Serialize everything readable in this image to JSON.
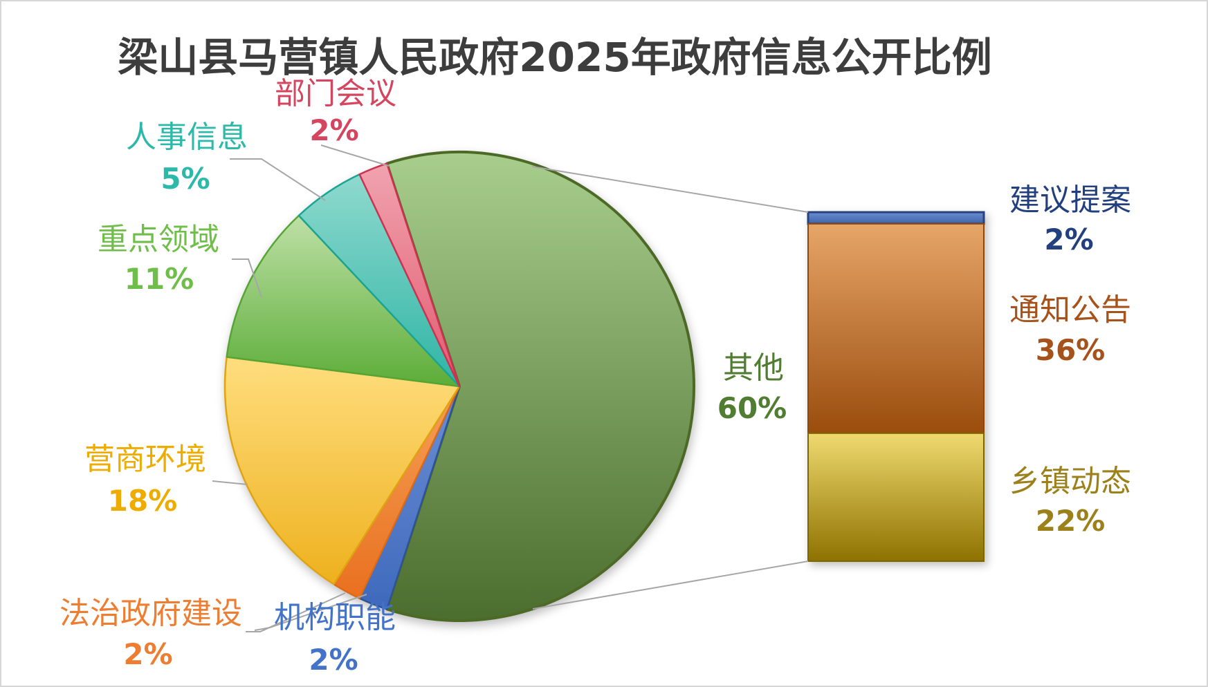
{
  "chart_data": {
    "type": "pie",
    "variant": "bar-of-pie",
    "title": "梁山县马营镇人民政府2025年政府信息公开比例",
    "title_color": "#3D3D3D",
    "unit": "%",
    "legend": "none",
    "grid": false,
    "start_angle_deg": -18,
    "pie_slices": [
      {
        "label": "其他",
        "value": 60,
        "percent_label": "60%",
        "fill_top": "#A8CE8D",
        "fill_bottom": "#4B6D2E",
        "border_color": "#4C6A26",
        "label_color": "#507D32"
      },
      {
        "label": "机构职能",
        "value": 2,
        "percent_label": "2%",
        "fill_top": "#6D8FD4",
        "fill_bottom": "#3E69BC",
        "border_color": "#2E5396",
        "label_color": "#4273C8"
      },
      {
        "label": "法治政府建设",
        "value": 2,
        "percent_label": "2%",
        "fill_top": "#F5A057",
        "fill_bottom": "#E9701F",
        "border_color": "#DB6B14",
        "label_color": "#ED7D31"
      },
      {
        "label": "营商环境",
        "value": 18,
        "percent_label": "18%",
        "fill_top": "#FFDE7E",
        "fill_bottom": "#EEB11E",
        "border_color": "#E0A312",
        "label_color": "#EFAC00"
      },
      {
        "label": "重点领域",
        "value": 11,
        "percent_label": "11%",
        "fill_top": "#BEE0A6",
        "fill_bottom": "#5CAD38",
        "border_color": "#55A434",
        "label_color": "#6FBE49"
      },
      {
        "label": "人事信息",
        "value": 5,
        "percent_label": "5%",
        "fill_top": "#8FD9CE",
        "fill_bottom": "#2FB5A5",
        "border_color": "#1CA493",
        "label_color": "#2DB9A9"
      },
      {
        "label": "部门会议",
        "value": 2,
        "percent_label": "2%",
        "fill_top": "#F0A3AF",
        "fill_bottom": "#E25B70",
        "border_color": "#CC3351",
        "label_color": "#D6455F"
      }
    ],
    "bar_breakdown_of": "其他",
    "bar_segments": [
      {
        "label": "建议提案",
        "value": 2,
        "percent_label": "2%",
        "fill_top": "#6C8FD0",
        "fill_bottom": "#3D63A9",
        "border_color": "#27427C",
        "label_color": "#23407E"
      },
      {
        "label": "通知公告",
        "value": 36,
        "percent_label": "36%",
        "fill_top": "#E7A568",
        "fill_bottom": "#9A4D0D",
        "border_color": "#8F470B",
        "label_color": "#A5521B"
      },
      {
        "label": "乡镇动态",
        "value": 22,
        "percent_label": "22%",
        "fill_top": "#F0DA70",
        "fill_bottom": "#8E7200",
        "border_color": "#7E6600",
        "label_color": "#9C8019"
      }
    ],
    "connector_line_color": "#A6A6A6"
  }
}
